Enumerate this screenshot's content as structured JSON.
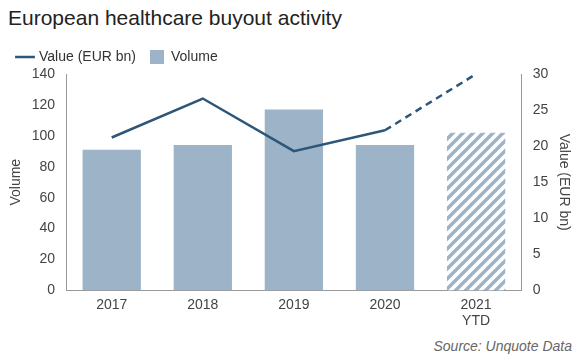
{
  "chart_data": {
    "type": "bar",
    "title": "European healthcare buyout activity",
    "annotations": [
      "Source: Unquote Data"
    ],
    "categories": [
      "2017",
      "2018",
      "2019",
      "2020",
      "2021 YTD"
    ],
    "series": [
      {
        "name": "Volume",
        "type": "bar",
        "color": "#9db3c8",
        "values": [
          91,
          94,
          117,
          94,
          102
        ]
      },
      {
        "name": "Value (EUR bn)",
        "type": "line",
        "color": "#2d5678",
        "axis": "y2",
        "values": [
          21.2,
          26.6,
          19.3,
          22.2,
          30
        ]
      }
    ],
    "ylabel": "Volume",
    "y2label": "Value (EUR bn)",
    "ylim": [
      0,
      140
    ],
    "yticks": [
      0,
      20,
      40,
      60,
      80,
      100,
      120,
      140
    ],
    "y2lim": [
      0,
      30
    ],
    "y2ticks": [
      0,
      5,
      10,
      15,
      20,
      25,
      30
    ],
    "grid": false,
    "legend": "top"
  }
}
